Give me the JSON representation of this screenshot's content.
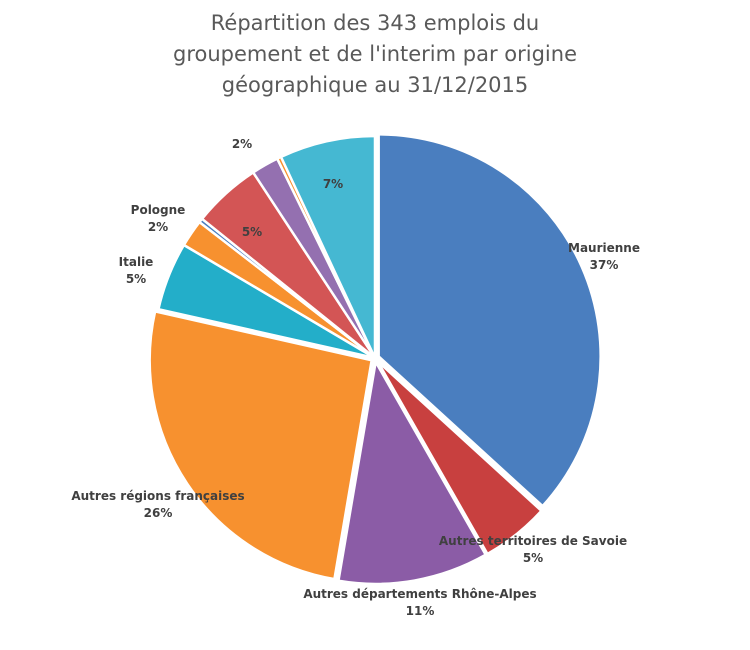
{
  "chart_data": {
    "type": "pie",
    "title": [
      "Répartition des 343 emplois du",
      "groupement et de l'interim par origine",
      "géographique au 31/12/2015"
    ],
    "slices": [
      {
        "label": "Maurienne",
        "value": 37,
        "pct": "37%",
        "color": "#4a7ebf"
      },
      {
        "label": "Autres territoires de Savoie",
        "value": 5,
        "pct": "5%",
        "color": "#c8403f"
      },
      {
        "label": "Autres départements Rhône-Alpes",
        "value": 11,
        "pct": "11%",
        "color": "#8b5ca6"
      },
      {
        "label": "Autres régions françaises",
        "value": 26,
        "pct": "26%",
        "color": "#f7912f"
      },
      {
        "label": "Italie",
        "value": 5,
        "pct": "5%",
        "color": "#23aec9"
      },
      {
        "label": "Pologne",
        "value": 2,
        "pct": "2%",
        "color": "#f7912f"
      },
      {
        "label": "",
        "value": 0.3,
        "pct": "",
        "color": "#4a7ebf"
      },
      {
        "label": "",
        "value": 5,
        "pct": "5%",
        "color": "#d35555"
      },
      {
        "label": "",
        "value": 2,
        "pct": "2%",
        "color": "#9470b0"
      },
      {
        "label": "",
        "value": 0.3,
        "pct": "",
        "color": "#f7912f"
      },
      {
        "label": "",
        "value": 7,
        "pct": "7%",
        "color": "#45b8d2"
      }
    ],
    "legend": "none"
  }
}
